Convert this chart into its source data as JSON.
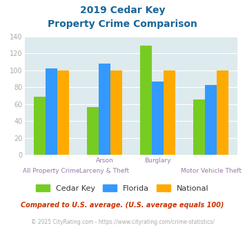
{
  "title_line1": "2019 Cedar Key",
  "title_line2": "Property Crime Comparison",
  "cedar_key": [
    69,
    57,
    129,
    66
  ],
  "florida": [
    102,
    108,
    87,
    83
  ],
  "national": [
    100,
    100,
    100,
    100
  ],
  "cedar_key_color": "#77cc22",
  "florida_color": "#3399ff",
  "national_color": "#ffaa00",
  "bg_color": "#ddeaee",
  "title_color": "#1a6699",
  "axis_color": "#aaaaaa",
  "label_color": "#9977aa",
  "ylim": [
    0,
    140
  ],
  "yticks": [
    0,
    20,
    40,
    60,
    80,
    100,
    120,
    140
  ],
  "top_labels": [
    "",
    "Arson",
    "Burglary",
    ""
  ],
  "bottom_labels": [
    "All Property Crime",
    "Larceny & Theft",
    "",
    "Motor Vehicle Theft"
  ],
  "footnote": "Compared to U.S. average. (U.S. average equals 100)",
  "copyright": "© 2025 CityRating.com - https://www.cityrating.com/crime-statistics/",
  "legend_labels": [
    "Cedar Key",
    "Florida",
    "National"
  ],
  "copyright_color": "#aaaaaa",
  "footnote_color": "#cc3300"
}
